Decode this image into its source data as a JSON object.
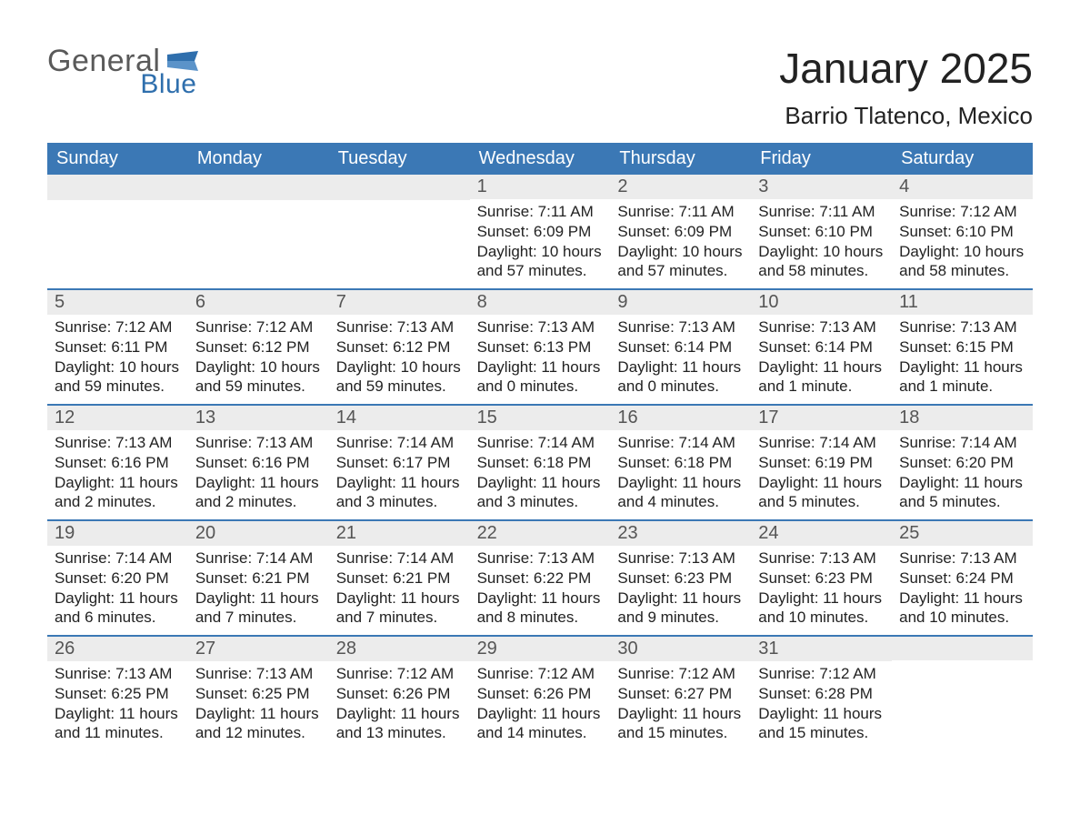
{
  "colors": {
    "header_blue": "#3b78b5",
    "row_stripe": "#ececec",
    "text_dark": "#333333",
    "logo_grey": "#5a5a5a",
    "logo_blue": "#2f6fad",
    "page_bg": "#ffffff"
  },
  "logo": {
    "word1": "General",
    "word2": "Blue"
  },
  "title": "January 2025",
  "subtitle": "Barrio Tlatenco, Mexico",
  "day_headers": [
    "Sunday",
    "Monday",
    "Tuesday",
    "Wednesday",
    "Thursday",
    "Friday",
    "Saturday"
  ],
  "labels": {
    "sunrise": "Sunrise",
    "sunset": "Sunset",
    "daylight": "Daylight"
  },
  "weeks": [
    [
      null,
      null,
      null,
      {
        "n": "1",
        "sunrise": "7:11 AM",
        "sunset": "6:09 PM",
        "daylight": "10 hours and 57 minutes."
      },
      {
        "n": "2",
        "sunrise": "7:11 AM",
        "sunset": "6:09 PM",
        "daylight": "10 hours and 57 minutes."
      },
      {
        "n": "3",
        "sunrise": "7:11 AM",
        "sunset": "6:10 PM",
        "daylight": "10 hours and 58 minutes."
      },
      {
        "n": "4",
        "sunrise": "7:12 AM",
        "sunset": "6:10 PM",
        "daylight": "10 hours and 58 minutes."
      }
    ],
    [
      {
        "n": "5",
        "sunrise": "7:12 AM",
        "sunset": "6:11 PM",
        "daylight": "10 hours and 59 minutes."
      },
      {
        "n": "6",
        "sunrise": "7:12 AM",
        "sunset": "6:12 PM",
        "daylight": "10 hours and 59 minutes."
      },
      {
        "n": "7",
        "sunrise": "7:13 AM",
        "sunset": "6:12 PM",
        "daylight": "10 hours and 59 minutes."
      },
      {
        "n": "8",
        "sunrise": "7:13 AM",
        "sunset": "6:13 PM",
        "daylight": "11 hours and 0 minutes."
      },
      {
        "n": "9",
        "sunrise": "7:13 AM",
        "sunset": "6:14 PM",
        "daylight": "11 hours and 0 minutes."
      },
      {
        "n": "10",
        "sunrise": "7:13 AM",
        "sunset": "6:14 PM",
        "daylight": "11 hours and 1 minute."
      },
      {
        "n": "11",
        "sunrise": "7:13 AM",
        "sunset": "6:15 PM",
        "daylight": "11 hours and 1 minute."
      }
    ],
    [
      {
        "n": "12",
        "sunrise": "7:13 AM",
        "sunset": "6:16 PM",
        "daylight": "11 hours and 2 minutes."
      },
      {
        "n": "13",
        "sunrise": "7:13 AM",
        "sunset": "6:16 PM",
        "daylight": "11 hours and 2 minutes."
      },
      {
        "n": "14",
        "sunrise": "7:14 AM",
        "sunset": "6:17 PM",
        "daylight": "11 hours and 3 minutes."
      },
      {
        "n": "15",
        "sunrise": "7:14 AM",
        "sunset": "6:18 PM",
        "daylight": "11 hours and 3 minutes."
      },
      {
        "n": "16",
        "sunrise": "7:14 AM",
        "sunset": "6:18 PM",
        "daylight": "11 hours and 4 minutes."
      },
      {
        "n": "17",
        "sunrise": "7:14 AM",
        "sunset": "6:19 PM",
        "daylight": "11 hours and 5 minutes."
      },
      {
        "n": "18",
        "sunrise": "7:14 AM",
        "sunset": "6:20 PM",
        "daylight": "11 hours and 5 minutes."
      }
    ],
    [
      {
        "n": "19",
        "sunrise": "7:14 AM",
        "sunset": "6:20 PM",
        "daylight": "11 hours and 6 minutes."
      },
      {
        "n": "20",
        "sunrise": "7:14 AM",
        "sunset": "6:21 PM",
        "daylight": "11 hours and 7 minutes."
      },
      {
        "n": "21",
        "sunrise": "7:14 AM",
        "sunset": "6:21 PM",
        "daylight": "11 hours and 7 minutes."
      },
      {
        "n": "22",
        "sunrise": "7:13 AM",
        "sunset": "6:22 PM",
        "daylight": "11 hours and 8 minutes."
      },
      {
        "n": "23",
        "sunrise": "7:13 AM",
        "sunset": "6:23 PM",
        "daylight": "11 hours and 9 minutes."
      },
      {
        "n": "24",
        "sunrise": "7:13 AM",
        "sunset": "6:23 PM",
        "daylight": "11 hours and 10 minutes."
      },
      {
        "n": "25",
        "sunrise": "7:13 AM",
        "sunset": "6:24 PM",
        "daylight": "11 hours and 10 minutes."
      }
    ],
    [
      {
        "n": "26",
        "sunrise": "7:13 AM",
        "sunset": "6:25 PM",
        "daylight": "11 hours and 11 minutes."
      },
      {
        "n": "27",
        "sunrise": "7:13 AM",
        "sunset": "6:25 PM",
        "daylight": "11 hours and 12 minutes."
      },
      {
        "n": "28",
        "sunrise": "7:12 AM",
        "sunset": "6:26 PM",
        "daylight": "11 hours and 13 minutes."
      },
      {
        "n": "29",
        "sunrise": "7:12 AM",
        "sunset": "6:26 PM",
        "daylight": "11 hours and 14 minutes."
      },
      {
        "n": "30",
        "sunrise": "7:12 AM",
        "sunset": "6:27 PM",
        "daylight": "11 hours and 15 minutes."
      },
      {
        "n": "31",
        "sunrise": "7:12 AM",
        "sunset": "6:28 PM",
        "daylight": "11 hours and 15 minutes."
      },
      null
    ]
  ]
}
